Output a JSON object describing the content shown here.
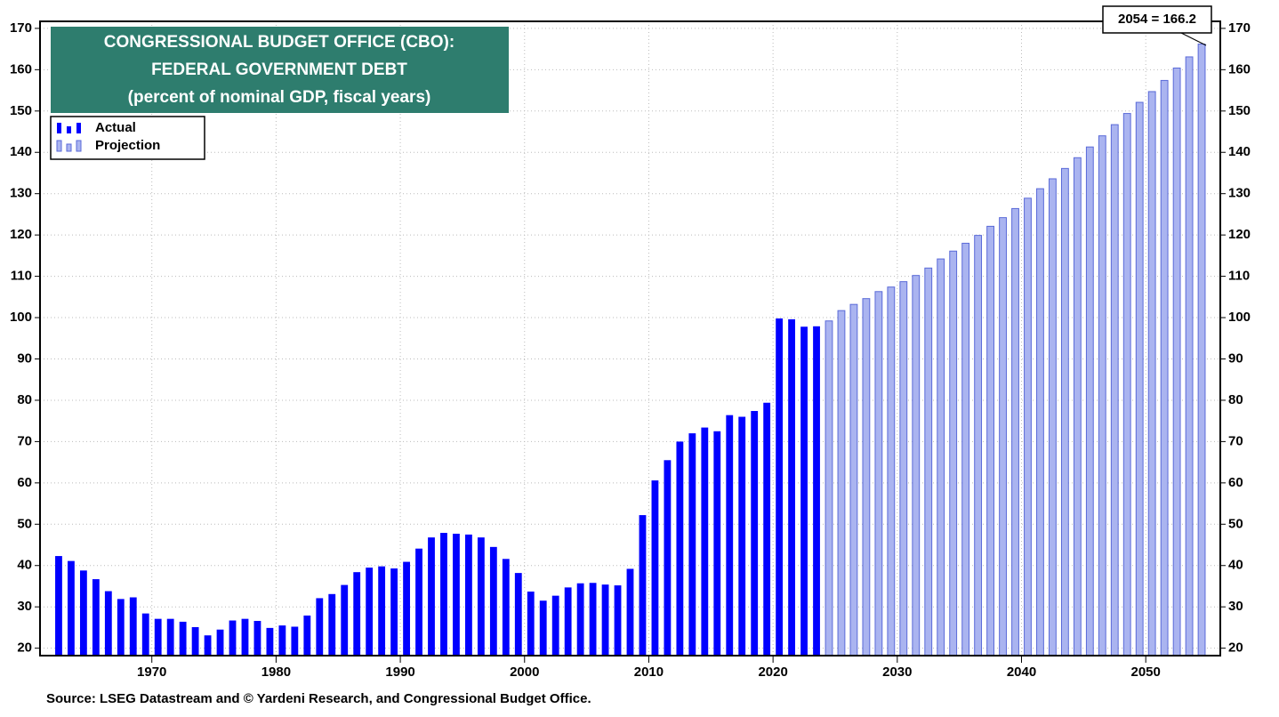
{
  "chart_data": {
    "type": "bar",
    "title": [
      "CONGRESSIONAL BUDGET OFFICE (CBO):",
      "FEDERAL GOVERNMENT DEBT",
      "(percent of nominal GDP, fiscal years)"
    ],
    "annotation": "2054 = 166.2",
    "source": "Source: LSEG Datastream and © Yardeni Research, and Congressional Budget Office.",
    "x": [
      1962,
      1963,
      1964,
      1965,
      1966,
      1967,
      1968,
      1969,
      1970,
      1971,
      1972,
      1973,
      1974,
      1975,
      1976,
      1977,
      1978,
      1979,
      1980,
      1981,
      1982,
      1983,
      1984,
      1985,
      1986,
      1987,
      1988,
      1989,
      1990,
      1991,
      1992,
      1993,
      1994,
      1995,
      1996,
      1997,
      1998,
      1999,
      2000,
      2001,
      2002,
      2003,
      2004,
      2005,
      2006,
      2007,
      2008,
      2009,
      2010,
      2011,
      2012,
      2013,
      2014,
      2015,
      2016,
      2017,
      2018,
      2019,
      2020,
      2021,
      2022,
      2023,
      2024,
      2025,
      2026,
      2027,
      2028,
      2029,
      2030,
      2031,
      2032,
      2033,
      2034,
      2035,
      2036,
      2037,
      2038,
      2039,
      2040,
      2041,
      2042,
      2043,
      2044,
      2045,
      2046,
      2047,
      2048,
      2049,
      2050,
      2051,
      2052,
      2053,
      2054
    ],
    "series": [
      {
        "name": "Actual",
        "color": "#0000ff",
        "values": [
          42.3,
          41.1,
          38.8,
          36.7,
          33.8,
          31.9,
          32.3,
          28.4,
          27.1,
          27.1,
          26.4,
          25.1,
          23.1,
          24.5,
          26.7,
          27.1,
          26.6,
          24.9,
          25.5,
          25.2,
          27.9,
          32.1,
          33.1,
          35.3,
          38.4,
          39.5,
          39.8,
          39.3,
          40.9,
          44.1,
          46.8,
          47.9,
          47.7,
          47.5,
          46.8,
          44.5,
          41.6,
          38.2,
          33.7,
          31.5,
          32.7,
          34.7,
          35.7,
          35.8,
          35.4,
          35.2,
          39.2,
          52.2,
          60.6,
          65.5,
          70.0,
          72.0,
          73.4,
          72.5,
          76.4,
          76.0,
          77.4,
          79.4,
          99.8,
          99.6,
          97.8,
          97.9,
          null,
          null,
          null,
          null,
          null,
          null,
          null,
          null,
          null,
          null,
          null,
          null,
          null,
          null,
          null,
          null,
          null,
          null,
          null,
          null,
          null,
          null,
          null,
          null,
          null,
          null,
          null,
          null,
          null,
          null,
          null
        ]
      },
      {
        "name": "Projection",
        "color": "#aab4f0",
        "values": [
          null,
          null,
          null,
          null,
          null,
          null,
          null,
          null,
          null,
          null,
          null,
          null,
          null,
          null,
          null,
          null,
          null,
          null,
          null,
          null,
          null,
          null,
          null,
          null,
          null,
          null,
          null,
          null,
          null,
          null,
          null,
          null,
          null,
          null,
          null,
          null,
          null,
          null,
          null,
          null,
          null,
          null,
          null,
          null,
          null,
          null,
          null,
          null,
          null,
          null,
          null,
          null,
          null,
          null,
          null,
          null,
          null,
          null,
          null,
          null,
          null,
          null,
          99.2,
          101.7,
          103.2,
          104.6,
          106.3,
          107.4,
          108.7,
          110.2,
          112.0,
          114.2,
          116.1,
          118.0,
          119.9,
          122.1,
          124.2,
          126.4,
          128.9,
          131.2,
          133.6,
          136.1,
          138.7,
          141.3,
          144.0,
          146.7,
          149.4,
          152.1,
          154.7,
          157.4,
          160.4,
          163.1,
          166.2
        ]
      }
    ],
    "xlim": [
      1961,
      2056
    ],
    "xticks": [
      1970,
      1980,
      1990,
      2000,
      2010,
      2020,
      2030,
      2040,
      2050
    ],
    "ylim": [
      18.2,
      171.7
    ],
    "yticks": [
      20,
      30,
      40,
      50,
      60,
      70,
      80,
      90,
      100,
      110,
      120,
      130,
      140,
      150,
      160,
      170
    ],
    "grid": true
  }
}
